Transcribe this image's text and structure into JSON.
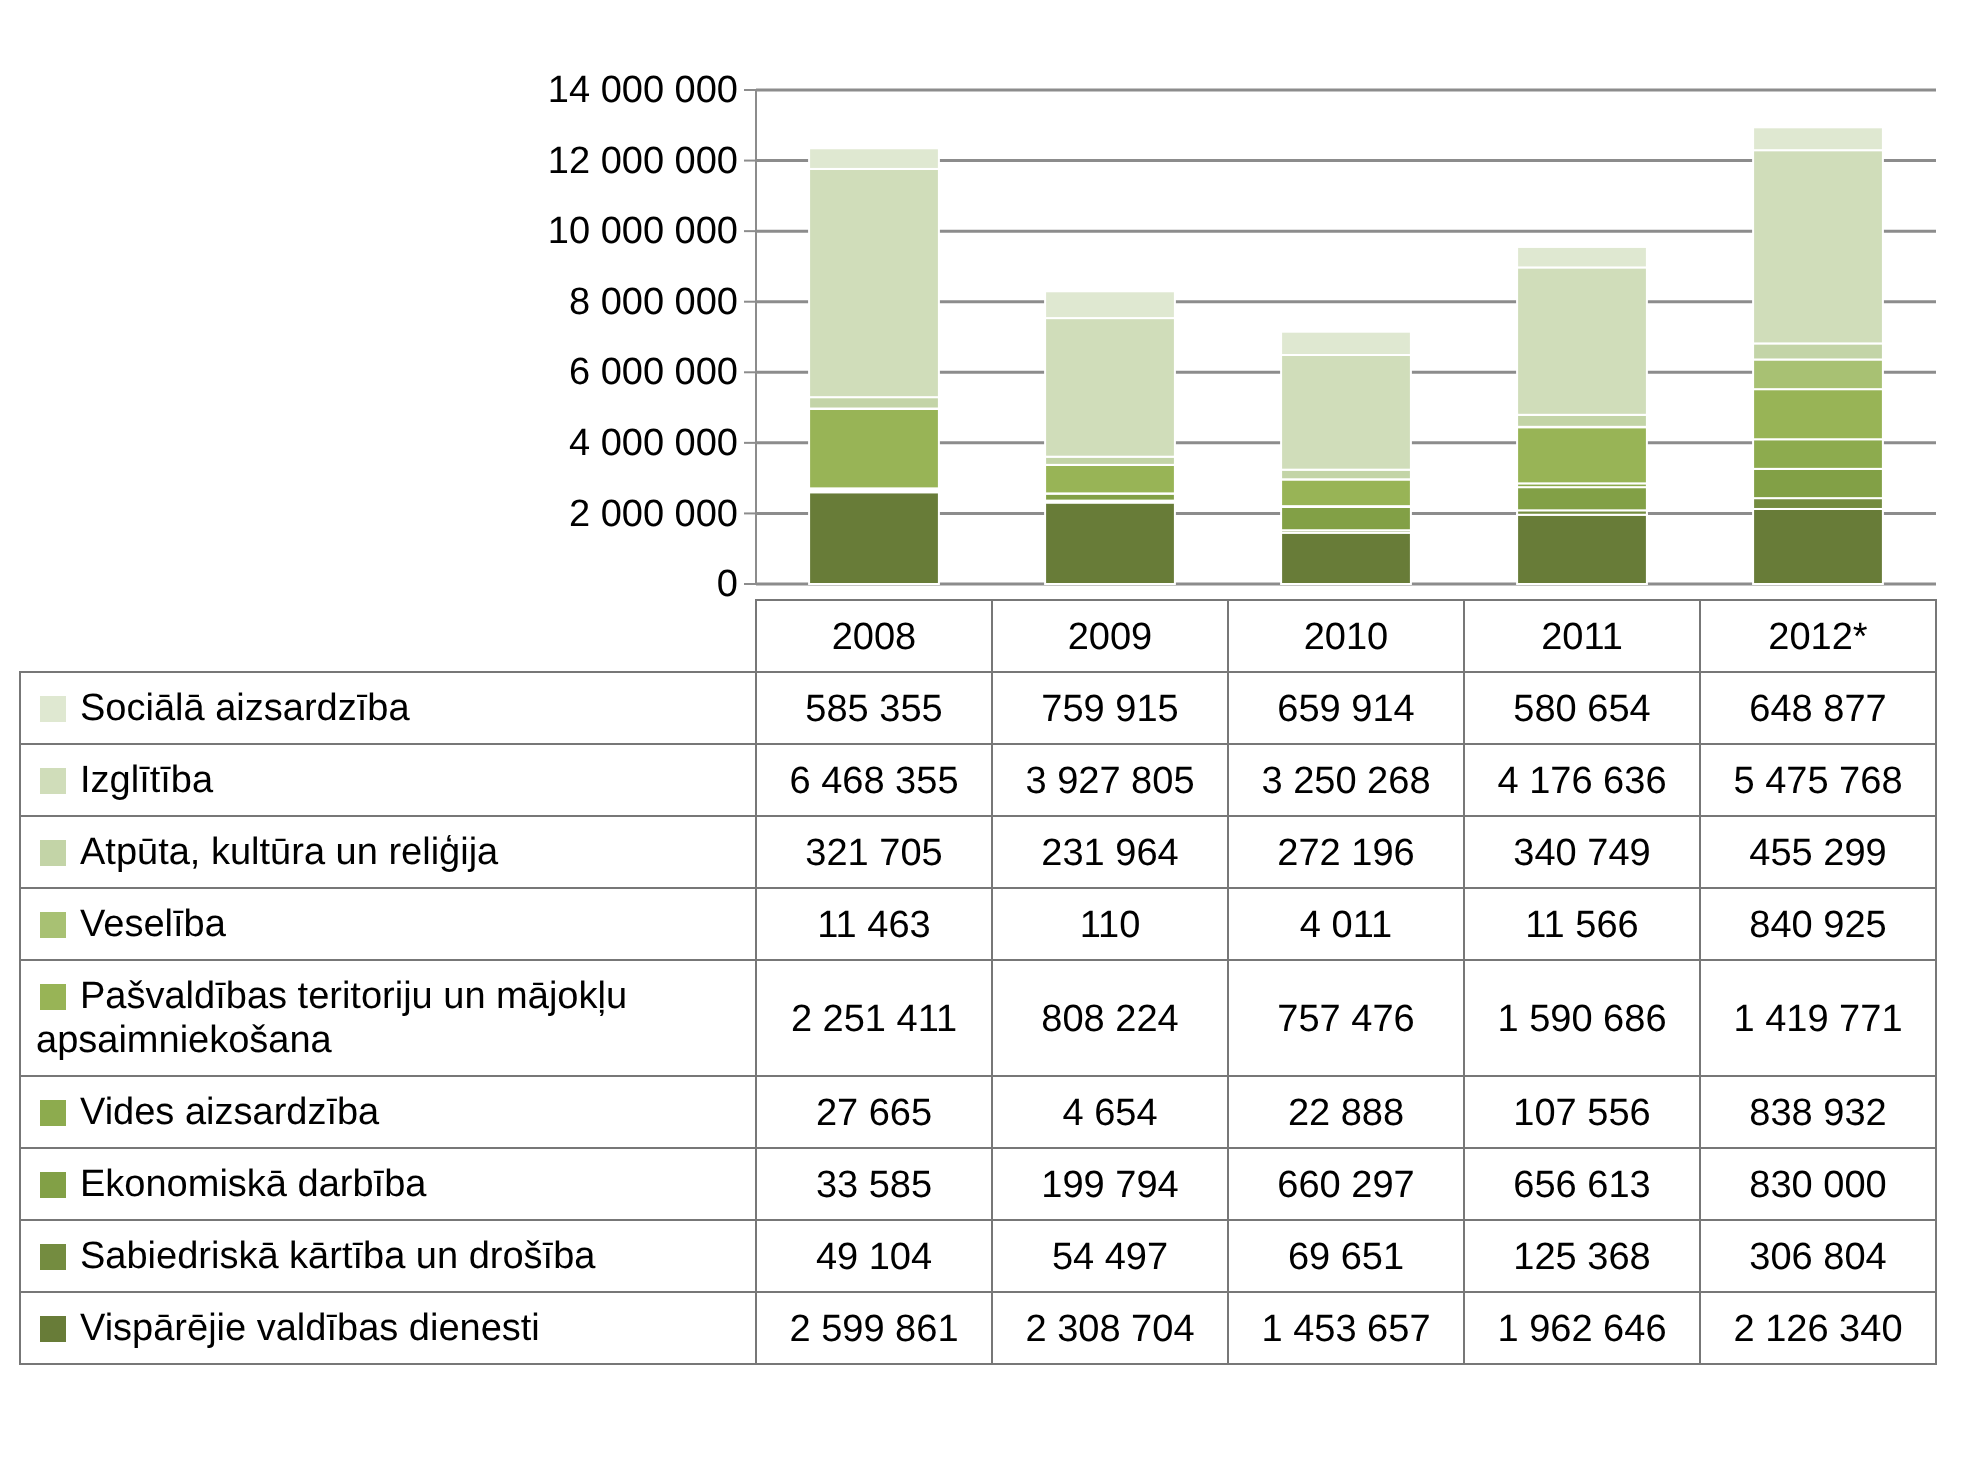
{
  "chart_data": {
    "type": "bar",
    "stacked": true,
    "categories": [
      "2008",
      "2009",
      "2010",
      "2011",
      "2012*"
    ],
    "ylim": [
      0,
      14000000
    ],
    "yticks": [
      {
        "value": 0,
        "label": "0"
      },
      {
        "value": 2000000,
        "label": "2 000 000"
      },
      {
        "value": 4000000,
        "label": "4 000 000"
      },
      {
        "value": 6000000,
        "label": "6 000 000"
      },
      {
        "value": 8000000,
        "label": "8 000 000"
      },
      {
        "value": 10000000,
        "label": "10 000 000"
      },
      {
        "value": 12000000,
        "label": "12 000 000"
      },
      {
        "value": 14000000,
        "label": "14 000 000"
      }
    ],
    "grid": "y",
    "legend": "bottom",
    "data_labels": true,
    "series": [
      {
        "name": "Vispārējie valdības dienesti",
        "color": "#687c38",
        "values": [
          2599861,
          2308704,
          1453657,
          1962646,
          2126340
        ]
      },
      {
        "name": "Sabiedriskā kārtība un drošība",
        "color": "#748c40",
        "values": [
          49104,
          54497,
          69651,
          125368,
          306804
        ]
      },
      {
        "name": "Ekonomiskā darbība",
        "color": "#82a046",
        "values": [
          33585,
          199794,
          660297,
          656613,
          830000
        ]
      },
      {
        "name": "Vides aizsardzība",
        "color": "#8dab4e",
        "values": [
          27665,
          4654,
          22888,
          107556,
          838932
        ]
      },
      {
        "name": "Pašvaldības teritoriju un mājokļu apsaimniekošana",
        "color": "#98b456",
        "values": [
          2251411,
          808224,
          757476,
          1590686,
          1419771
        ]
      },
      {
        "name": "Veselība",
        "color": "#a8c173",
        "values": [
          11463,
          110,
          4011,
          11566,
          840925
        ]
      },
      {
        "name": "Atpūta, kultūra un reliģija",
        "color": "#c3d4a7",
        "values": [
          321705,
          231964,
          272196,
          340749,
          455299
        ]
      },
      {
        "name": "Izglītība",
        "color": "#d0ddba",
        "values": [
          6468355,
          3927805,
          3250268,
          4176636,
          5475768
        ]
      },
      {
        "name": "Sociālā aizsardzība",
        "color": "#dfe8d1",
        "values": [
          585355,
          759915,
          659914,
          580654,
          648877
        ]
      }
    ]
  }
}
